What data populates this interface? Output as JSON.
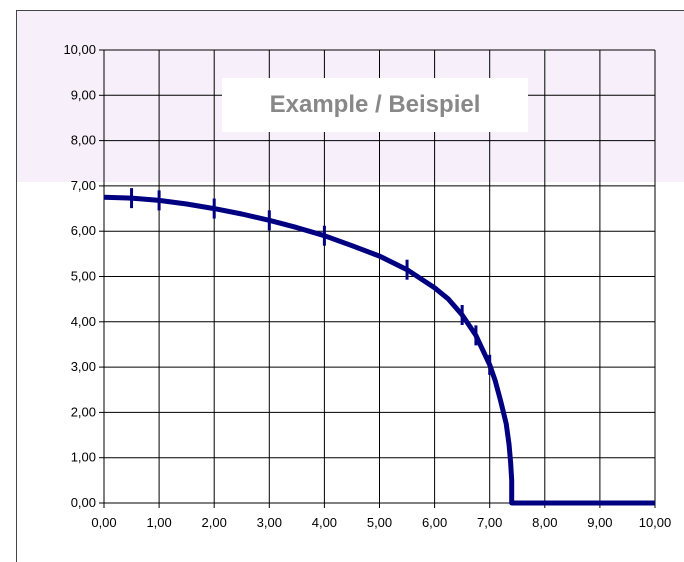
{
  "chart_data": {
    "type": "line",
    "title": "Example / Beispiel",
    "xlim": [
      0,
      10
    ],
    "ylim": [
      0,
      10
    ],
    "x_ticks": [
      "0,00",
      "1,00",
      "2,00",
      "3,00",
      "4,00",
      "5,00",
      "6,00",
      "7,00",
      "8,00",
      "9,00",
      "10,00"
    ],
    "y_ticks": [
      "0,00",
      "1,00",
      "2,00",
      "3,00",
      "4,00",
      "5,00",
      "6,00",
      "7,00",
      "8,00",
      "9,00",
      "10,00"
    ],
    "grid": true,
    "colors": {
      "series": "#000080",
      "grid": "#000000",
      "title": "#888888",
      "tint": "#f7f0fb"
    },
    "series": [
      {
        "x": [
          0.0,
          0.5,
          1.0,
          1.5,
          2.0,
          2.5,
          3.0,
          3.5,
          4.0,
          4.5,
          5.0,
          5.5,
          6.0,
          6.25,
          6.5,
          6.75,
          7.0,
          7.1,
          7.2,
          7.3,
          7.35,
          7.38,
          7.4,
          7.4,
          7.4,
          10.0
        ],
        "y": [
          6.75,
          6.73,
          6.68,
          6.6,
          6.5,
          6.38,
          6.24,
          6.08,
          5.9,
          5.68,
          5.45,
          5.15,
          4.75,
          4.5,
          4.15,
          3.7,
          3.05,
          2.7,
          2.25,
          1.75,
          1.3,
          0.9,
          0.5,
          0.0,
          0.0,
          0.0
        ]
      }
    ],
    "markers": {
      "x": [
        0.5,
        1.0,
        2.0,
        3.0,
        4.0,
        5.5,
        6.5,
        6.75,
        7.0
      ],
      "y": [
        6.73,
        6.68,
        6.5,
        6.24,
        5.9,
        5.15,
        4.15,
        3.7,
        3.05
      ]
    }
  }
}
